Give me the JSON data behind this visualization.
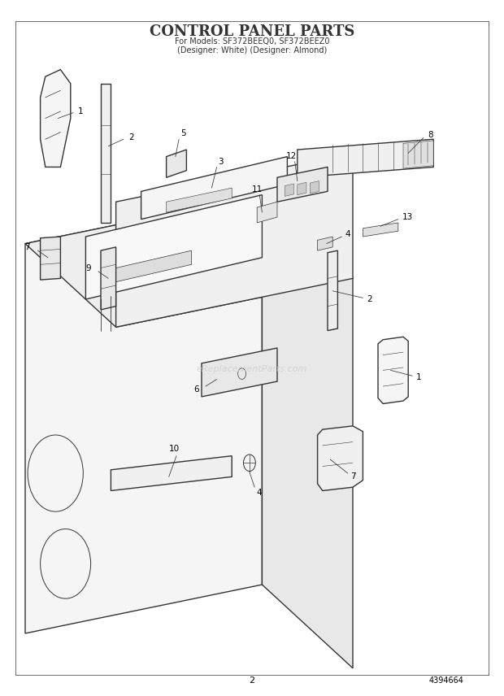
{
  "title_line1": "CONTROL PANEL PARTS",
  "title_line2": "For Models: SF372BEEQ0, SF372BEEZ0",
  "title_line3": "(Designer: White) (Designer: Almond)",
  "page_number": "2",
  "part_number": "4394664",
  "bg_color": "#ffffff",
  "line_color": "#333333",
  "watermark": "eReplacementParts.com"
}
